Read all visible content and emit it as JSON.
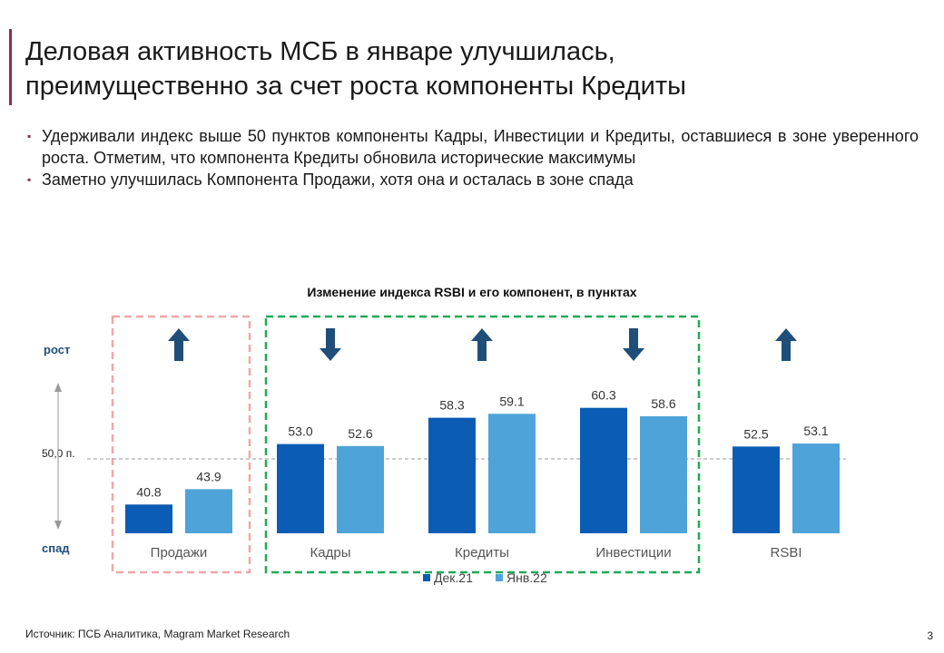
{
  "slide": {
    "title_line1": "Деловая активность МСБ в январе улучшилась,",
    "title_line2": "преимущественно за счет роста компоненты Кредиты",
    "bullets": [
      "Удерживали индекс выше 50 пунктов компоненты Кадры, Инвестиции и Кредиты, оставшиеся в зоне уверенного роста. Отметим, что компонента Кредиты обновила исторические максимумы",
      "Заметно улучшилась Компонента Продажи, хотя она и осталась в зоне спада"
    ],
    "bullet_marker": "▪",
    "source": "Источник: ПСБ Аналитика, Magram Market Research",
    "page_number": "3"
  },
  "chart_data": {
    "type": "bar",
    "title": "Изменение индекса RSBI и его компонент, в пунктах",
    "categories": [
      "Продажи",
      "Кадры",
      "Кредиты",
      "Инвестиции",
      "RSBI"
    ],
    "series": [
      {
        "name": "Дек.21",
        "values": [
          40.8,
          53.0,
          58.3,
          60.3,
          52.5
        ],
        "color": "#0a5cb4"
      },
      {
        "name": "Янв.22",
        "values": [
          43.9,
          52.6,
          59.1,
          58.6,
          53.1
        ],
        "color": "#4ea4d9"
      }
    ],
    "directions": [
      "up",
      "down",
      "up",
      "down",
      "up"
    ],
    "arrow_color": "#1f4e79",
    "reference_line": {
      "value": 50,
      "label": "50,0 п."
    },
    "axis_labels": {
      "top": "рост",
      "bottom": "спад"
    },
    "axis_label_color": "#1f4e79",
    "groups": [
      {
        "categories": [
          "Продажи"
        ],
        "color": "#f0a7a7"
      },
      {
        "categories": [
          "Кадры",
          "Кредиты",
          "Инвестиции"
        ],
        "color": "#1faa55"
      }
    ],
    "ylim": [
      35,
      65
    ],
    "legend_position": "bottom",
    "grid": false
  }
}
